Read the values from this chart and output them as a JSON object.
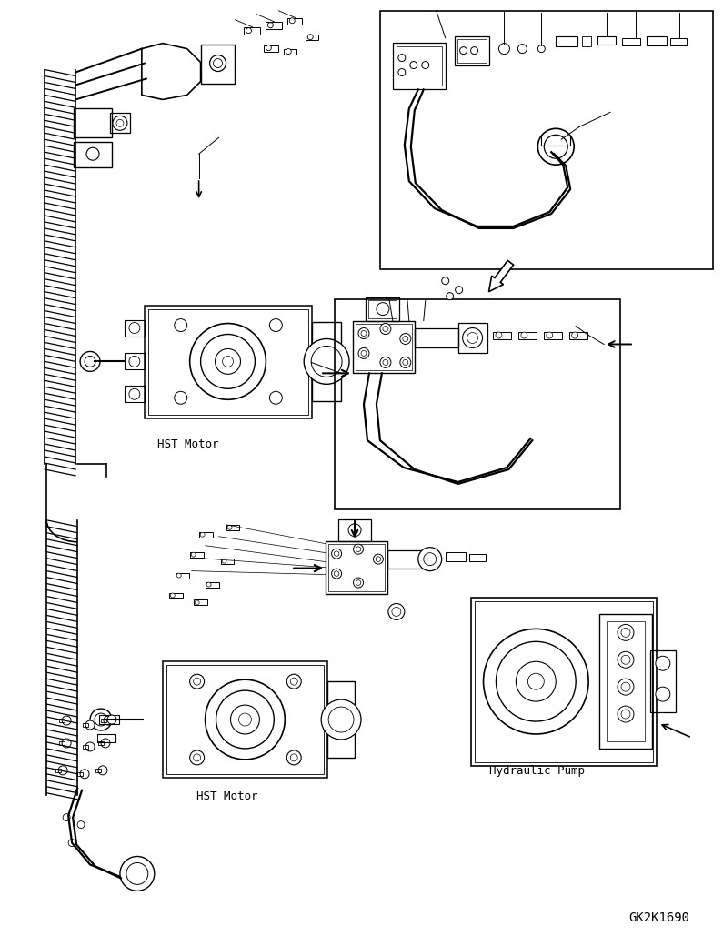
{
  "bg_color": "#ffffff",
  "line_color": "#000000",
  "title_font": "monospace",
  "code_text": "GK2K1690",
  "label_hst_motor_1": "HST Motor",
  "label_hst_motor_2": "HST Motor",
  "label_hydraulic_pump": "Hydraulic Pump",
  "figsize": [
    7.95,
    10.29
  ],
  "dpi": 100
}
